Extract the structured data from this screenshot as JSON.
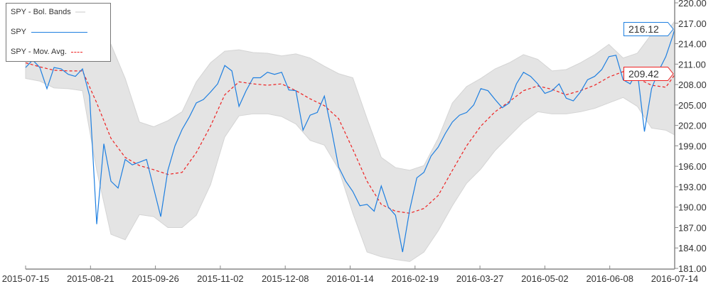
{
  "chart_data": {
    "type": "line",
    "xlim": [
      "2015-07-15",
      "2016-07-14"
    ],
    "ylim": [
      181,
      220
    ],
    "x_ticks": [
      "2015-07-15",
      "2015-08-21",
      "2015-09-26",
      "2015-11-02",
      "2015-12-08",
      "2016-01-14",
      "2016-02-19",
      "2016-03-27",
      "2016-05-02",
      "2016-06-08",
      "2016-07-14"
    ],
    "y_ticks": [
      "220.00",
      "217.00",
      "214.00",
      "211.00",
      "208.00",
      "205.00",
      "202.00",
      "199.00",
      "196.00",
      "193.00",
      "190.00",
      "187.00",
      "184.00",
      "181.00"
    ],
    "y_axis_position": "right",
    "legend_position": "top-left",
    "colors": {
      "spy": "#1e7fe0",
      "mavg": "#ee2222",
      "bands": "#e4e4e4"
    },
    "legend": [
      "SPY - Bol. Bands",
      "SPY",
      "SPY - Mov. Avg."
    ],
    "last_values": {
      "spy": "216.12",
      "mavg": "209.42"
    },
    "spy": {
      "name": "SPY",
      "x": [
        "2015-07-15",
        "2015-07-19",
        "2015-07-23",
        "2015-07-27",
        "2015-07-31",
        "2015-08-04",
        "2015-08-08",
        "2015-08-12",
        "2015-08-16",
        "2015-08-20",
        "2015-08-24",
        "2015-08-28",
        "2015-09-01",
        "2015-09-05",
        "2015-09-09",
        "2015-09-13",
        "2015-09-17",
        "2015-09-21",
        "2015-09-25",
        "2015-09-29",
        "2015-10-03",
        "2015-10-07",
        "2015-10-11",
        "2015-10-15",
        "2015-10-19",
        "2015-10-23",
        "2015-10-27",
        "2015-10-31",
        "2015-11-04",
        "2015-11-08",
        "2015-11-12",
        "2015-11-16",
        "2015-11-20",
        "2015-11-24",
        "2015-11-28",
        "2015-12-02",
        "2015-12-06",
        "2015-12-10",
        "2015-12-14",
        "2015-12-18",
        "2015-12-22",
        "2015-12-26",
        "2015-12-30",
        "2016-01-03",
        "2016-01-07",
        "2016-01-11",
        "2016-01-15",
        "2016-01-19",
        "2016-01-23",
        "2016-01-27",
        "2016-01-31",
        "2016-02-04",
        "2016-02-08",
        "2016-02-12",
        "2016-02-16",
        "2016-02-20",
        "2016-02-24",
        "2016-02-28",
        "2016-03-03",
        "2016-03-07",
        "2016-03-11",
        "2016-03-15",
        "2016-03-19",
        "2016-03-23",
        "2016-03-27",
        "2016-03-31",
        "2016-04-04",
        "2016-04-08",
        "2016-04-12",
        "2016-04-16",
        "2016-04-20",
        "2016-04-24",
        "2016-04-28",
        "2016-05-02",
        "2016-05-06",
        "2016-05-10",
        "2016-05-14",
        "2016-05-18",
        "2016-05-22",
        "2016-05-26",
        "2016-05-30",
        "2016-06-03",
        "2016-06-07",
        "2016-06-11",
        "2016-06-15",
        "2016-06-19",
        "2016-06-23",
        "2016-06-27",
        "2016-07-01",
        "2016-07-05",
        "2016-07-09",
        "2016-07-13",
        "2016-07-14"
      ],
      "values": [
        210.5,
        211.6,
        210.5,
        207.4,
        210.5,
        210.3,
        209.5,
        209.2,
        210.3,
        206.3,
        187.5,
        199.3,
        193.8,
        192.8,
        197.0,
        196.2,
        196.6,
        197.0,
        192.8,
        188.6,
        195.4,
        199.0,
        201.4,
        203.2,
        205.3,
        205.8,
        206.9,
        208.1,
        210.8,
        210.0,
        204.8,
        207.1,
        209.0,
        209.0,
        209.8,
        209.5,
        209.8,
        207.2,
        207.1,
        201.3,
        203.5,
        203.9,
        206.3,
        201.4,
        195.9,
        193.8,
        192.3,
        190.2,
        190.4,
        189.4,
        193.1,
        190.0,
        188.8,
        183.4,
        189.6,
        194.3,
        195.1,
        197.5,
        198.8,
        200.8,
        202.5,
        203.5,
        203.9,
        205.0,
        207.4,
        207.1,
        205.8,
        204.6,
        205.3,
        208.1,
        209.8,
        209.2,
        208.1,
        206.7,
        207.1,
        208.1,
        206.0,
        205.6,
        206.9,
        208.7,
        209.2,
        210.2,
        212.1,
        212.3,
        208.7,
        208.1,
        210.0,
        201.1,
        207.4,
        210.0,
        212.1,
        215.2,
        216.12
      ]
    },
    "bands_x": [
      "2015-07-15",
      "2015-07-23",
      "2015-07-31",
      "2015-08-08",
      "2015-08-16",
      "2015-08-24",
      "2015-09-01",
      "2015-09-09",
      "2015-09-17",
      "2015-09-25",
      "2015-10-03",
      "2015-10-11",
      "2015-10-19",
      "2015-10-27",
      "2015-11-04",
      "2015-11-12",
      "2015-11-20",
      "2015-11-28",
      "2015-12-06",
      "2015-12-14",
      "2015-12-22",
      "2015-12-30",
      "2016-01-07",
      "2016-01-15",
      "2016-01-23",
      "2016-01-31",
      "2016-02-08",
      "2016-02-16",
      "2016-02-24",
      "2016-03-03",
      "2016-03-11",
      "2016-03-19",
      "2016-03-27",
      "2016-04-04",
      "2016-04-12",
      "2016-04-20",
      "2016-04-28",
      "2016-05-06",
      "2016-05-14",
      "2016-05-22",
      "2016-05-30",
      "2016-06-07",
      "2016-06-15",
      "2016-06-23",
      "2016-07-01",
      "2016-07-09",
      "2016-07-14"
    ],
    "mov_avg": {
      "name": "SPY - Mov. Avg.",
      "values": [
        211.2,
        210.6,
        210.1,
        210.0,
        210.0,
        205.3,
        200.1,
        197.3,
        196.1,
        195.5,
        194.8,
        195.1,
        198.0,
        201.9,
        206.5,
        208.4,
        208.1,
        207.9,
        208.1,
        207.1,
        205.9,
        204.9,
        203.0,
        198.5,
        193.8,
        190.4,
        189.4,
        189.1,
        189.8,
        191.7,
        195.4,
        199.0,
        201.9,
        204.0,
        205.5,
        207.1,
        207.8,
        207.3,
        206.5,
        207.1,
        207.9,
        209.1,
        209.9,
        208.9,
        207.9,
        207.6,
        209.42
      ]
    },
    "bol_upper": [
      214.2,
      213.7,
      213.2,
      212.9,
      212.7,
      215.2,
      213.9,
      208.9,
      202.5,
      201.8,
      202.7,
      204.0,
      208.4,
      211.2,
      212.9,
      213.1,
      212.7,
      212.6,
      212.2,
      212.5,
      211.9,
      210.7,
      209.6,
      209.0,
      203.0,
      197.3,
      195.8,
      195.4,
      196.1,
      200.1,
      205.3,
      207.7,
      208.9,
      210.3,
      211.2,
      212.4,
      211.7,
      210.0,
      210.2,
      211.2,
      212.4,
      213.9,
      211.9,
      212.6,
      215.4,
      215.6,
      217.3
    ],
    "bol_lower": [
      208.9,
      208.5,
      207.5,
      207.4,
      207.1,
      195.4,
      186.0,
      185.2,
      188.9,
      188.6,
      187.0,
      187.0,
      188.8,
      193.3,
      200.3,
      203.4,
      203.7,
      203.7,
      203.3,
      202.2,
      199.8,
      199.1,
      195.6,
      189.1,
      183.4,
      182.7,
      182.3,
      182.0,
      183.4,
      186.5,
      190.2,
      193.5,
      195.6,
      198.3,
      200.4,
      202.5,
      204.0,
      203.7,
      203.7,
      204.0,
      204.5,
      205.3,
      206.1,
      204.8,
      201.6,
      201.3,
      200.6
    ]
  }
}
